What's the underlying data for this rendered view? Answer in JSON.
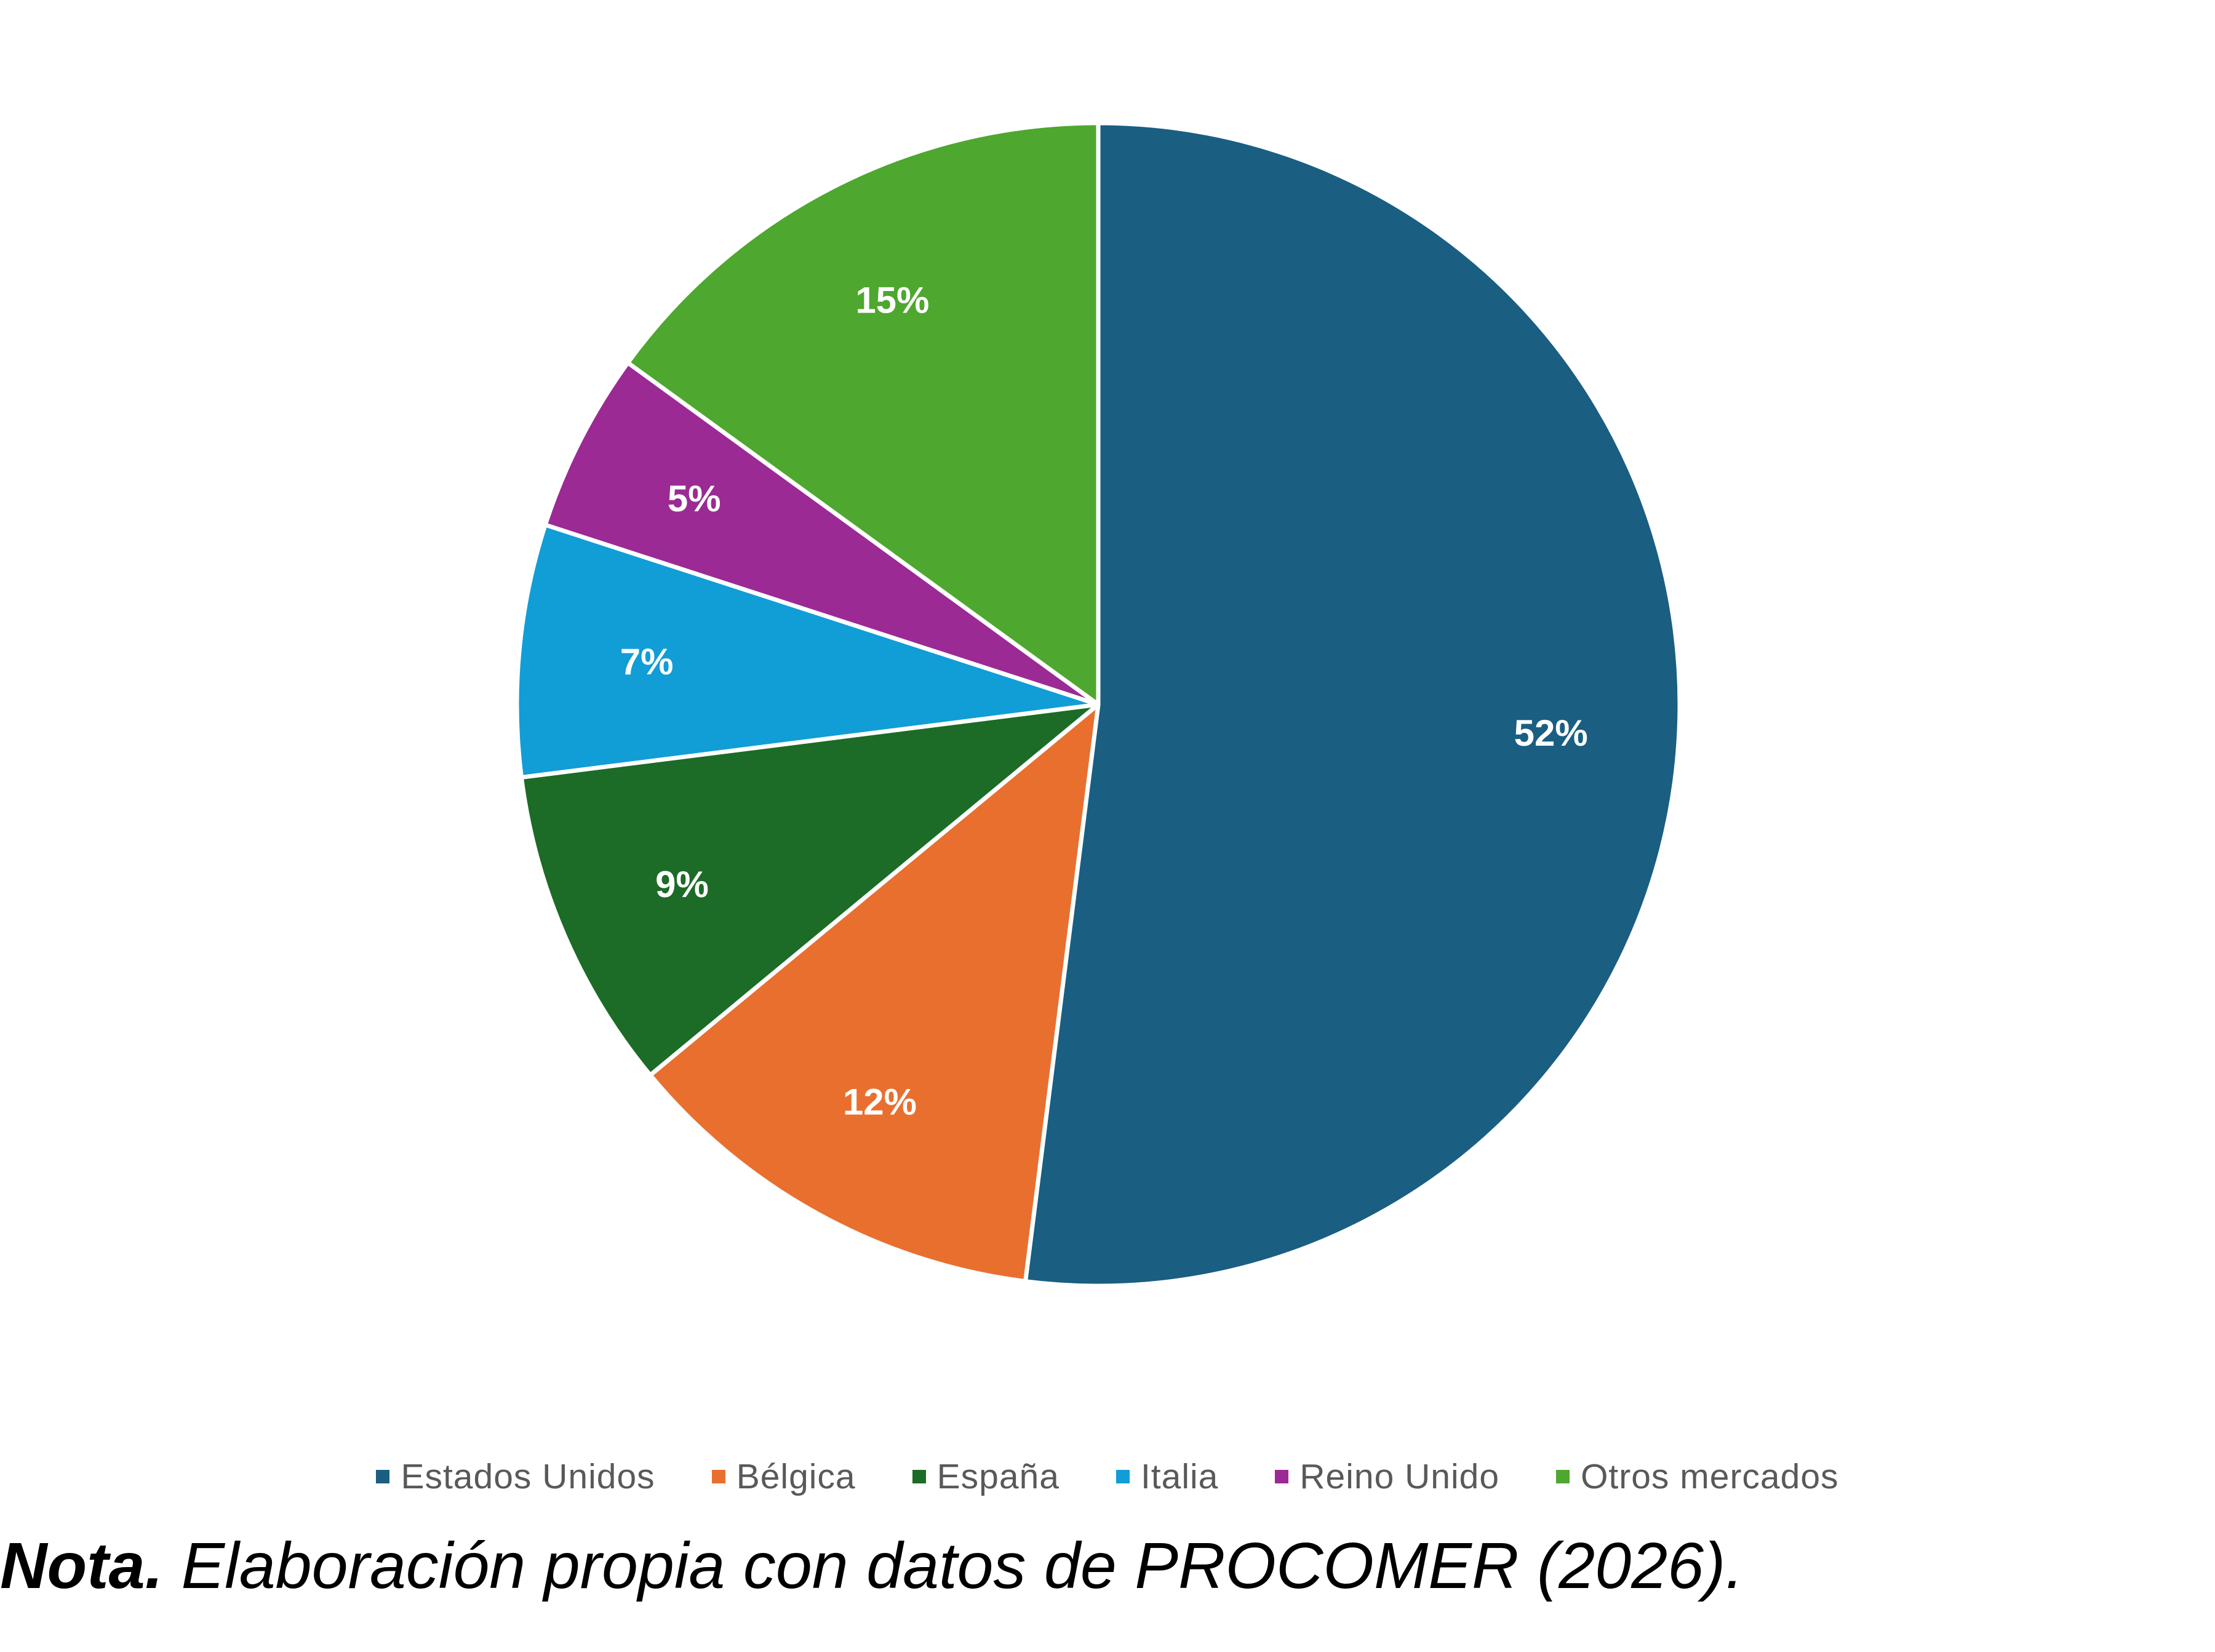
{
  "chart_data": {
    "type": "pie",
    "categories": [
      "Estados Unidos",
      "Bélgica",
      "España",
      "Italia",
      "Reino Unido",
      "Otros mercados"
    ],
    "values": [
      52,
      12,
      9,
      7,
      5,
      15
    ],
    "data_labels": [
      "52%",
      "12%",
      "9%",
      "7%",
      "5%",
      "15%"
    ],
    "colors": [
      "#1a5e82",
      "#e96f2f",
      "#1c6b27",
      "#119dd6",
      "#9b2a94",
      "#4ea72e"
    ],
    "title": "",
    "legend_position": "bottom",
    "start": "12 o'clock",
    "direction": "clockwise"
  },
  "note": {
    "label": "Nota.",
    "text": " Elaboración propia con datos de PROCOMER (2026)."
  }
}
